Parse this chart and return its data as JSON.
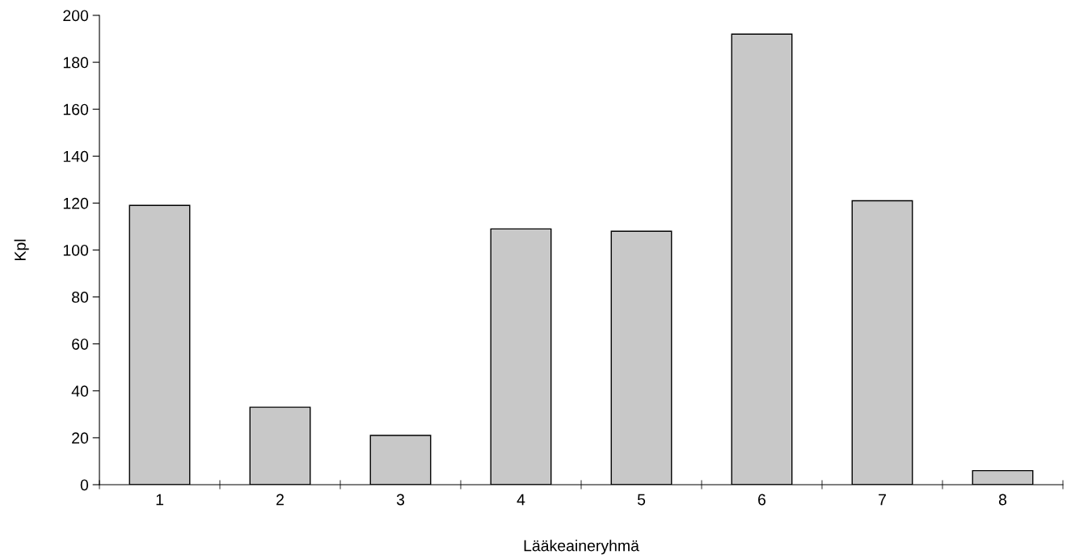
{
  "chart_data": {
    "type": "bar",
    "xlabel": "Lääkeaineryhmä",
    "ylabel": "Kpl",
    "categories": [
      "1",
      "2",
      "3",
      "4",
      "5",
      "6",
      "7",
      "8"
    ],
    "values": [
      119,
      33,
      21,
      109,
      108,
      192,
      121,
      6
    ],
    "color": "#c8c8c8",
    "ylim": [
      0,
      200
    ],
    "yticks": [
      0,
      20,
      40,
      60,
      80,
      100,
      120,
      140,
      160,
      180,
      200
    ],
    "grid": false,
    "legend": false
  }
}
